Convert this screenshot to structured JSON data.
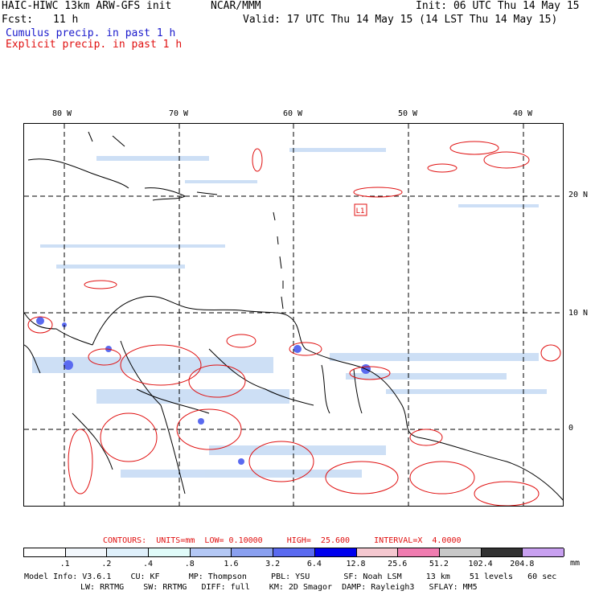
{
  "header": {
    "model": "HAIC-HIWC 13km ARW-GFS init",
    "org": "NCAR/MMM",
    "fcst_label": "Fcst:",
    "fcst_value": "11 h",
    "init": "Init: 06 UTC Thu 14 May 15",
    "valid": "Valid: 17 UTC Thu 14 May 15 (14 LST Thu 14 May 15)",
    "cumulus": "Cumulus precip. in past 1 h",
    "explicit": "Explicit precip. in past 1 h"
  },
  "colors": {
    "cumulus": "#1a1acc",
    "explicit": "#e01010",
    "coast": "#000000",
    "grid": "#000000"
  },
  "map": {
    "lon_labels": [
      "80 W",
      "70 W",
      "60 W",
      "50 W",
      "40 W"
    ],
    "lat_labels": [
      "20 N",
      "10 N",
      "0"
    ],
    "station_label": "L1"
  },
  "colorbar": {
    "levels": [
      ".1",
      ".2",
      ".4",
      ".8",
      "1.6",
      "3.2",
      "6.4",
      "12.8",
      "25.6",
      "51.2",
      "102.4",
      "204.8"
    ],
    "colors": [
      "#ffffff",
      "#f2f7fc",
      "#dff0fb",
      "#e0fbf9",
      "#b4c8f5",
      "#8aa0f0",
      "#5a6af0",
      "#0000ee",
      "#f5c8d0",
      "#f07cb0",
      "#c8c8c8",
      "#323232",
      "#c8a0f0"
    ],
    "units": "mm"
  },
  "contours_line": "CONTOURS:  UNITS=mm  LOW= 0.10000     HIGH=  25.600     INTERVAL=X  4.0000",
  "footer": {
    "line1": "Model Info: V3.6.1    CU: KF      MP: Thompson     PBL: YSU       SF: Noah LSM     13 km    51 levels   60 sec",
    "line2": "LW: RRTMG    SW: RRTMG   DIFF: full    KM: 2D Smagor  DAMP: Rayleigh3   SFLAY: MM5"
  }
}
